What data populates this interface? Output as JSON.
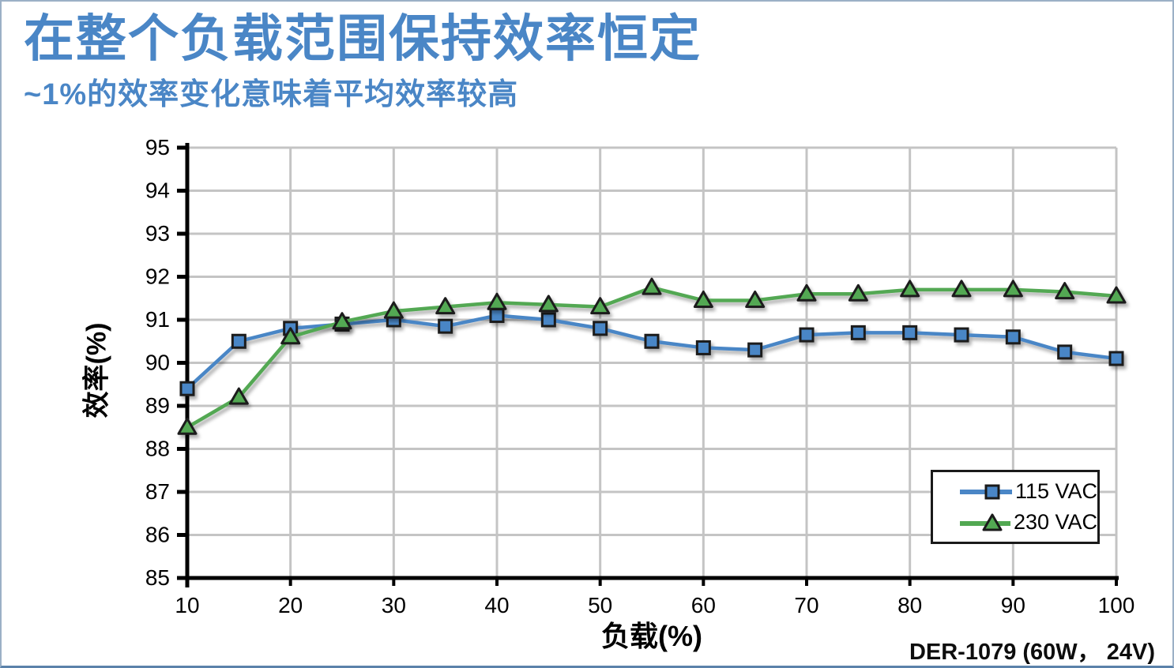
{
  "header": {
    "title": "在整个负载范围保持效率恒定",
    "subtitle": "~1%的效率变化意味着平均效率较高"
  },
  "footer": {
    "label": "DER-1079 (60W， 24V)"
  },
  "colors": {
    "title_blue": "#4a86c6",
    "grid": "#c4c4c4",
    "axis": "#000000",
    "marker_outline": "#1a1a1a",
    "legend_border": "#1a1a1a",
    "slide_border": "#9bb0c6"
  },
  "chart_data": {
    "type": "line",
    "title": "",
    "xlabel": "负载(%)",
    "ylabel": "效率(%)",
    "xlim": [
      10,
      100
    ],
    "ylim": [
      85,
      95
    ],
    "x_ticks": [
      10,
      20,
      30,
      40,
      50,
      60,
      70,
      80,
      90,
      100
    ],
    "y_ticks": [
      85,
      86,
      87,
      88,
      89,
      90,
      91,
      92,
      93,
      94,
      95
    ],
    "grid": true,
    "legend_position": "inside-bottom-right",
    "x": [
      10,
      15,
      20,
      25,
      30,
      35,
      40,
      45,
      50,
      55,
      60,
      65,
      70,
      75,
      80,
      85,
      90,
      95,
      100
    ],
    "series": [
      {
        "name": "115 VAC",
        "marker": "square",
        "color": "#4a86c6",
        "values": [
          89.4,
          90.5,
          90.8,
          90.9,
          91.0,
          90.85,
          91.1,
          91.0,
          90.8,
          90.5,
          90.35,
          90.3,
          90.65,
          90.7,
          90.7,
          90.65,
          90.6,
          90.25,
          90.1
        ]
      },
      {
        "name": "230 VAC",
        "marker": "triangle",
        "color": "#52a852",
        "values": [
          88.5,
          89.2,
          90.6,
          90.95,
          91.2,
          91.3,
          91.4,
          91.35,
          91.3,
          91.75,
          91.45,
          91.45,
          91.6,
          91.6,
          91.7,
          91.7,
          91.7,
          91.65,
          91.55
        ]
      }
    ]
  }
}
